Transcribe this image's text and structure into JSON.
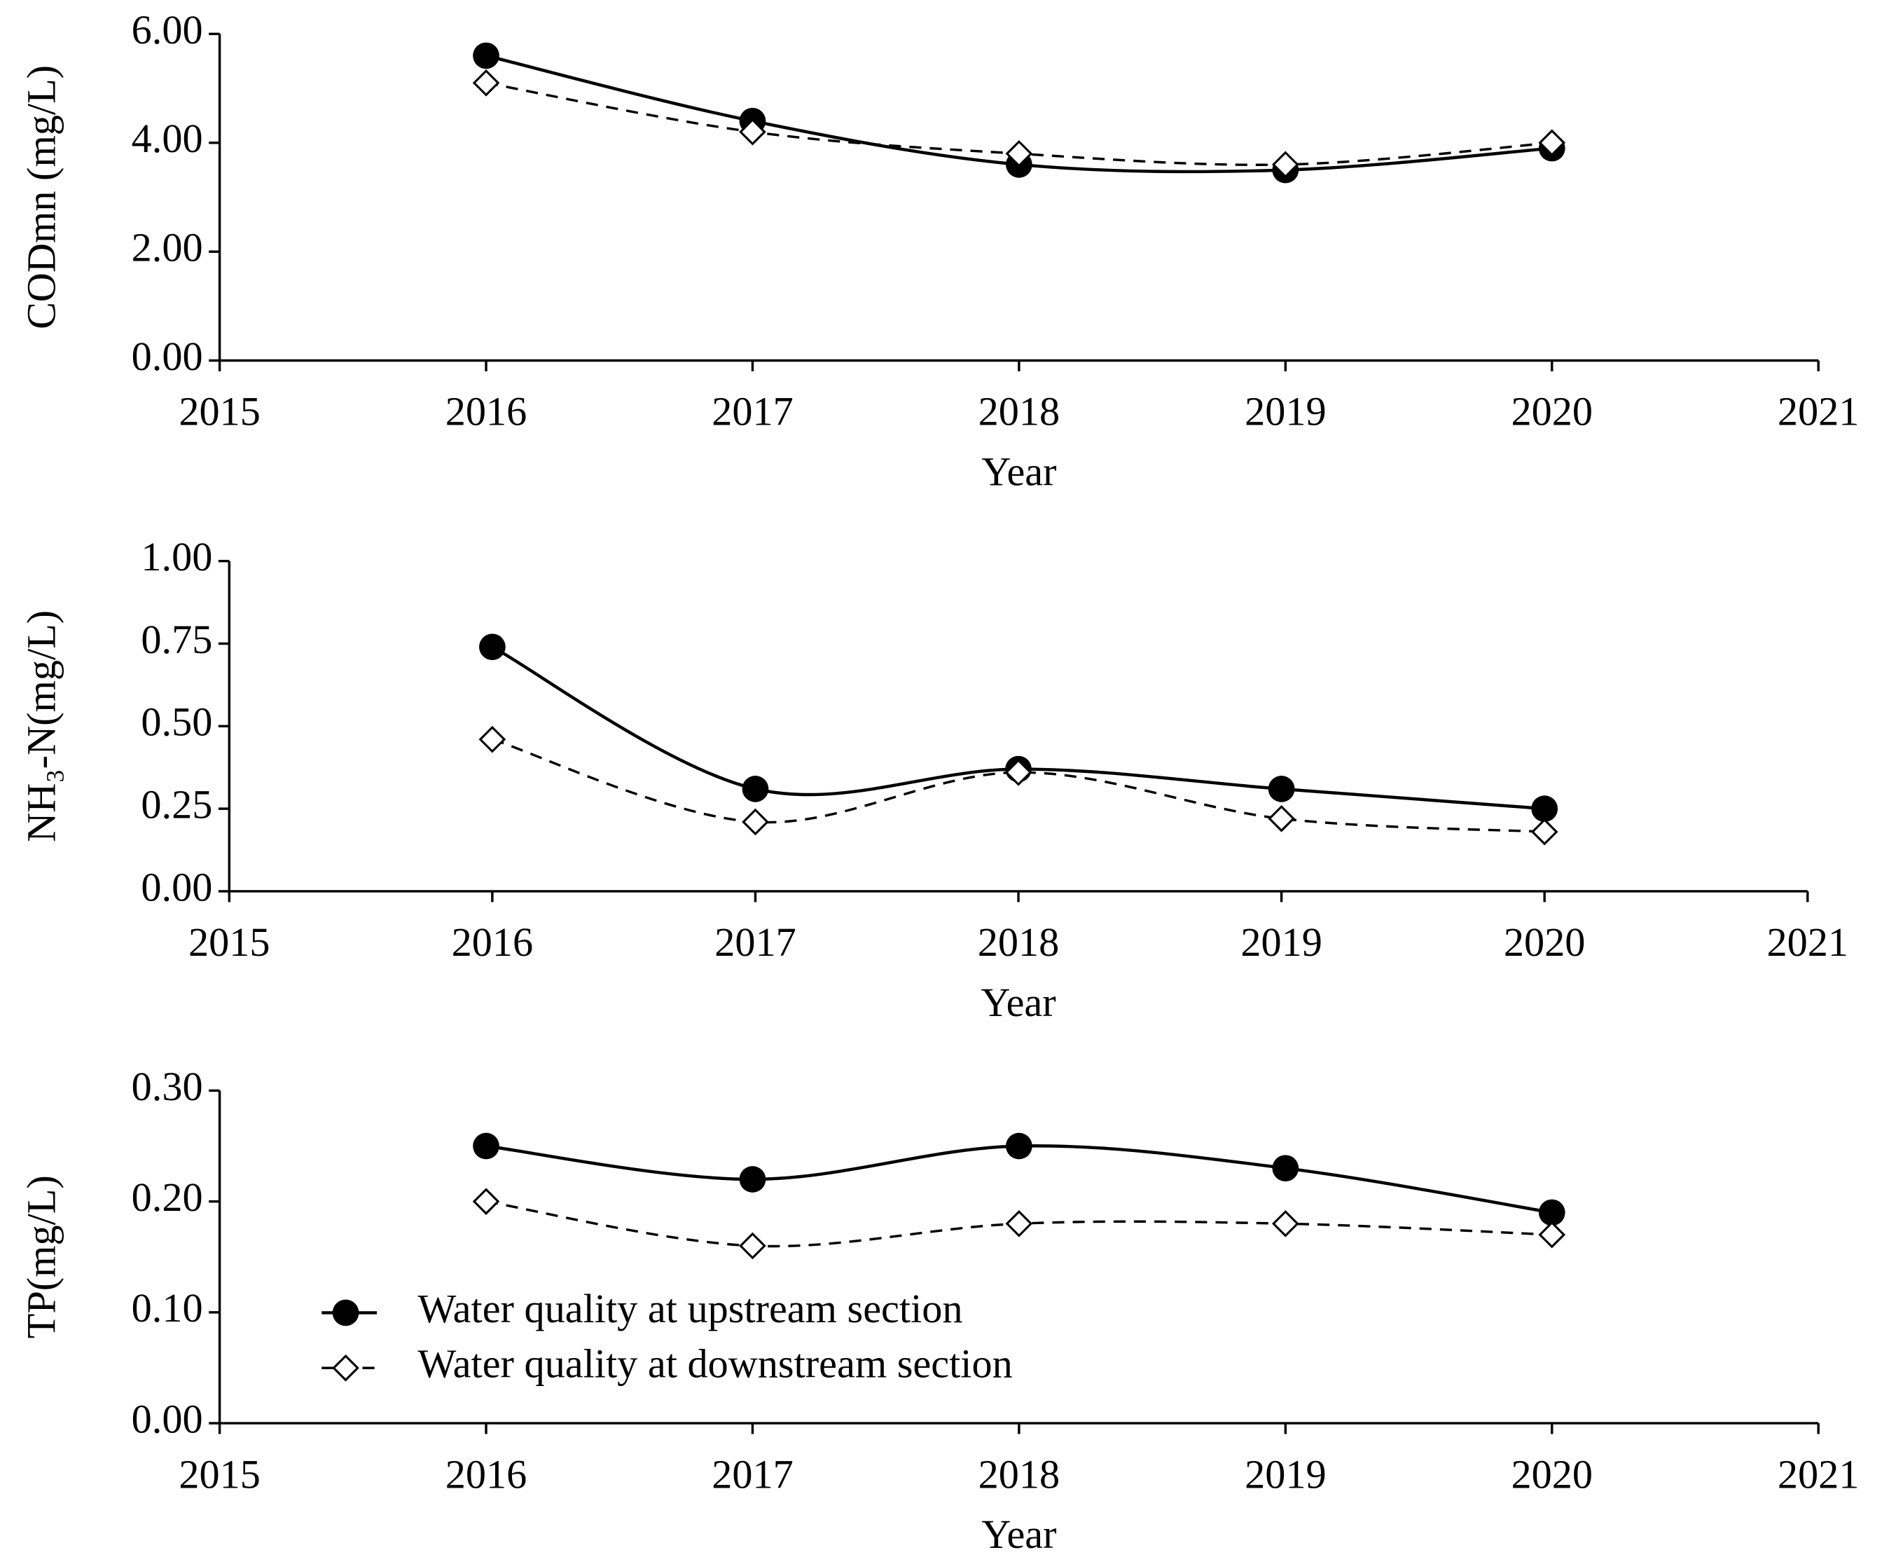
{
  "chart_data": [
    {
      "type": "line",
      "ylabel": "CODmn (mg/L)",
      "xlabel": "Year",
      "x": [
        2016,
        2017,
        2018,
        2019,
        2020
      ],
      "xlim": [
        2015,
        2021
      ],
      "xticks": [
        2015,
        2016,
        2017,
        2018,
        2019,
        2020,
        2021
      ],
      "ylim": [
        0,
        6
      ],
      "yticks": [
        {
          "value": 0,
          "label": "0.00"
        },
        {
          "value": 2,
          "label": "2.00"
        },
        {
          "value": 4,
          "label": "4.00"
        },
        {
          "value": 6,
          "label": "6.00"
        }
      ],
      "grid": false,
      "smooth": true,
      "series": [
        {
          "color": "#000000",
          "marker": "circle",
          "dash": false,
          "values": [
            5.6,
            4.4,
            3.6,
            3.5,
            3.9
          ]
        },
        {
          "color": "#000000",
          "marker": "diamond",
          "dash": true,
          "values": [
            5.1,
            4.2,
            3.8,
            3.6,
            4.0
          ]
        }
      ]
    },
    {
      "type": "line",
      "ylabel": "NH₃-N(mg/L)",
      "xlabel": "Year",
      "x": [
        2016,
        2017,
        2018,
        2019,
        2020
      ],
      "xlim": [
        2015,
        2021
      ],
      "xticks": [
        2015,
        2016,
        2017,
        2018,
        2019,
        2020,
        2021
      ],
      "ylim": [
        0,
        1
      ],
      "yticks": [
        {
          "value": 0,
          "label": "0.00"
        },
        {
          "value": 0.25,
          "label": "0.25"
        },
        {
          "value": 0.5,
          "label": "0.50"
        },
        {
          "value": 0.75,
          "label": "0.75"
        },
        {
          "value": 1,
          "label": "1.00"
        }
      ],
      "grid": false,
      "smooth": true,
      "series": [
        {
          "color": "#000000",
          "marker": "circle",
          "dash": false,
          "values": [
            0.74,
            0.31,
            0.37,
            0.31,
            0.25
          ]
        },
        {
          "color": "#000000",
          "marker": "diamond",
          "dash": true,
          "values": [
            0.46,
            0.21,
            0.36,
            0.22,
            0.18
          ]
        }
      ]
    },
    {
      "type": "line",
      "ylabel": "TP(mg/L)",
      "xlabel": "Year",
      "x": [
        2016,
        2017,
        2018,
        2019,
        2020
      ],
      "xlim": [
        2015,
        2021
      ],
      "xticks": [
        2015,
        2016,
        2017,
        2018,
        2019,
        2020,
        2021
      ],
      "ylim": [
        0,
        0.3
      ],
      "yticks": [
        {
          "value": 0,
          "label": "0.00"
        },
        {
          "value": 0.1,
          "label": "0.10"
        },
        {
          "value": 0.2,
          "label": "0.20"
        },
        {
          "value": 0.3,
          "label": "0.30"
        }
      ],
      "grid": false,
      "smooth": true,
      "legend": "lower left",
      "series": [
        {
          "name": "Water quality at upstream section",
          "color": "#000000",
          "marker": "circle",
          "dash": false,
          "values": [
            0.25,
            0.22,
            0.25,
            0.23,
            0.19
          ]
        },
        {
          "name": "Water quality at downstream section",
          "color": "#000000",
          "marker": "diamond",
          "dash": true,
          "values": [
            0.2,
            0.16,
            0.18,
            0.18,
            0.17
          ]
        }
      ]
    }
  ]
}
